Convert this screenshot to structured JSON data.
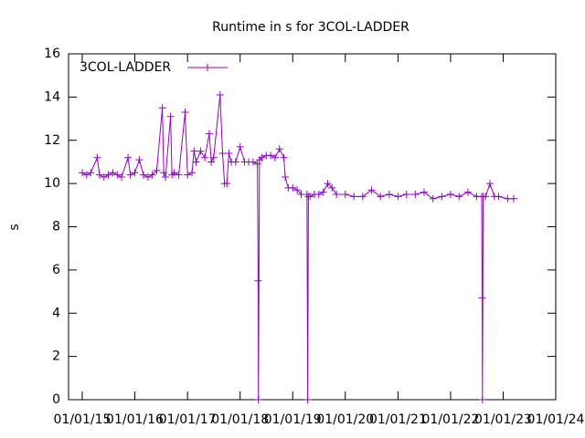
{
  "chart_data": {
    "type": "line",
    "title": "Runtime in s for 3COL-LADDER",
    "y_label": "s",
    "x": [
      "2015-01-01",
      "2015-02-01",
      "2015-03-01",
      "2015-04-15",
      "2015-05-01",
      "2015-06-01",
      "2015-07-01",
      "2015-08-01",
      "2015-09-01",
      "2015-10-01",
      "2015-11-15",
      "2015-12-01",
      "2016-01-01",
      "2016-02-01",
      "2016-03-01",
      "2016-04-01",
      "2016-05-01",
      "2016-06-01",
      "2016-07-10",
      "2016-07-20",
      "2016-08-01",
      "2016-09-05",
      "2016-09-15",
      "2016-10-01",
      "2016-11-01",
      "2016-12-15",
      "2017-01-01",
      "2017-02-01",
      "2017-02-15",
      "2017-03-01",
      "2017-04-01",
      "2017-05-01",
      "2017-06-01",
      "2017-06-15",
      "2017-07-01",
      "2017-08-15",
      "2017-09-01",
      "2017-09-15",
      "2017-10-01",
      "2017-10-15",
      "2017-11-01",
      "2017-12-01",
      "2018-01-01",
      "2018-02-01",
      "2018-03-01",
      "2018-04-01",
      "2018-05-01",
      "2018-05-06",
      "2018-05-08",
      "2018-05-15",
      "2018-06-01",
      "2018-07-01",
      "2018-08-01",
      "2018-09-01",
      "2018-10-01",
      "2018-11-01",
      "2018-11-10",
      "2018-12-01",
      "2019-01-01",
      "2019-02-01",
      "2019-03-01",
      "2019-04-10",
      "2019-04-15",
      "2019-04-20",
      "2019-05-01",
      "2019-06-01",
      "2019-07-01",
      "2019-08-01",
      "2019-09-01",
      "2019-10-01",
      "2019-11-01",
      "2020-01-01",
      "2020-03-01",
      "2020-05-01",
      "2020-07-01",
      "2020-09-01",
      "2020-11-01",
      "2021-01-01",
      "2021-03-01",
      "2021-05-01",
      "2021-07-01",
      "2021-09-01",
      "2021-11-01",
      "2022-01-01",
      "2022-03-01",
      "2022-05-01",
      "2022-07-01",
      "2022-08-05",
      "2022-08-08",
      "2022-08-10",
      "2022-08-15",
      "2022-09-01",
      "2022-10-01",
      "2022-11-01",
      "2022-12-01",
      "2023-02-01",
      "2023-03-15"
    ],
    "series": [
      {
        "name": "3COL-LADDER",
        "color": "#9400d3",
        "values": [
          10.5,
          10.4,
          10.5,
          11.2,
          10.4,
          10.3,
          10.4,
          10.5,
          10.4,
          10.3,
          11.2,
          10.4,
          10.5,
          11.1,
          10.4,
          10.3,
          10.4,
          10.6,
          13.5,
          10.5,
          10.3,
          13.1,
          10.4,
          10.5,
          10.4,
          13.3,
          10.4,
          10.5,
          11.5,
          11.0,
          11.5,
          11.2,
          12.3,
          11.0,
          11.2,
          14.1,
          11.4,
          10.0,
          10.0,
          11.4,
          11.0,
          11.0,
          11.7,
          11.0,
          11.0,
          11.0,
          10.9,
          5.5,
          0,
          11.1,
          11.2,
          11.3,
          11.3,
          11.2,
          11.6,
          11.2,
          10.3,
          9.8,
          9.8,
          9.7,
          9.5,
          9.5,
          0,
          9.4,
          9.4,
          9.5,
          9.5,
          9.6,
          10.0,
          9.8,
          9.5,
          9.5,
          9.4,
          9.4,
          9.7,
          9.4,
          9.5,
          9.4,
          9.5,
          9.5,
          9.6,
          9.3,
          9.4,
          9.5,
          9.4,
          9.6,
          9.4,
          9.4,
          4.7,
          0,
          9.4,
          9.4,
          10.0,
          9.4,
          9.4,
          9.3,
          9.3
        ]
      }
    ],
    "xlim": [
      "2014-09-28",
      "2024-01-01"
    ],
    "xticks": [
      {
        "value": "2015-01-01",
        "label": "01/01/15"
      },
      {
        "value": "2016-01-01",
        "label": "01/01/16"
      },
      {
        "value": "2017-01-01",
        "label": "01/01/17"
      },
      {
        "value": "2018-01-01",
        "label": "01/01/18"
      },
      {
        "value": "2019-01-01",
        "label": "01/01/19"
      },
      {
        "value": "2020-01-01",
        "label": "01/01/20"
      },
      {
        "value": "2021-01-01",
        "label": "01/01/21"
      },
      {
        "value": "2022-01-01",
        "label": "01/01/22"
      },
      {
        "value": "2023-01-01",
        "label": "01/01/23"
      },
      {
        "value": "2024-01-01",
        "label": "01/01/24"
      }
    ],
    "ylim": [
      0,
      16
    ],
    "yticks": [
      0,
      2,
      4,
      6,
      8,
      10,
      12,
      14,
      16
    ],
    "legend": "top-left"
  }
}
